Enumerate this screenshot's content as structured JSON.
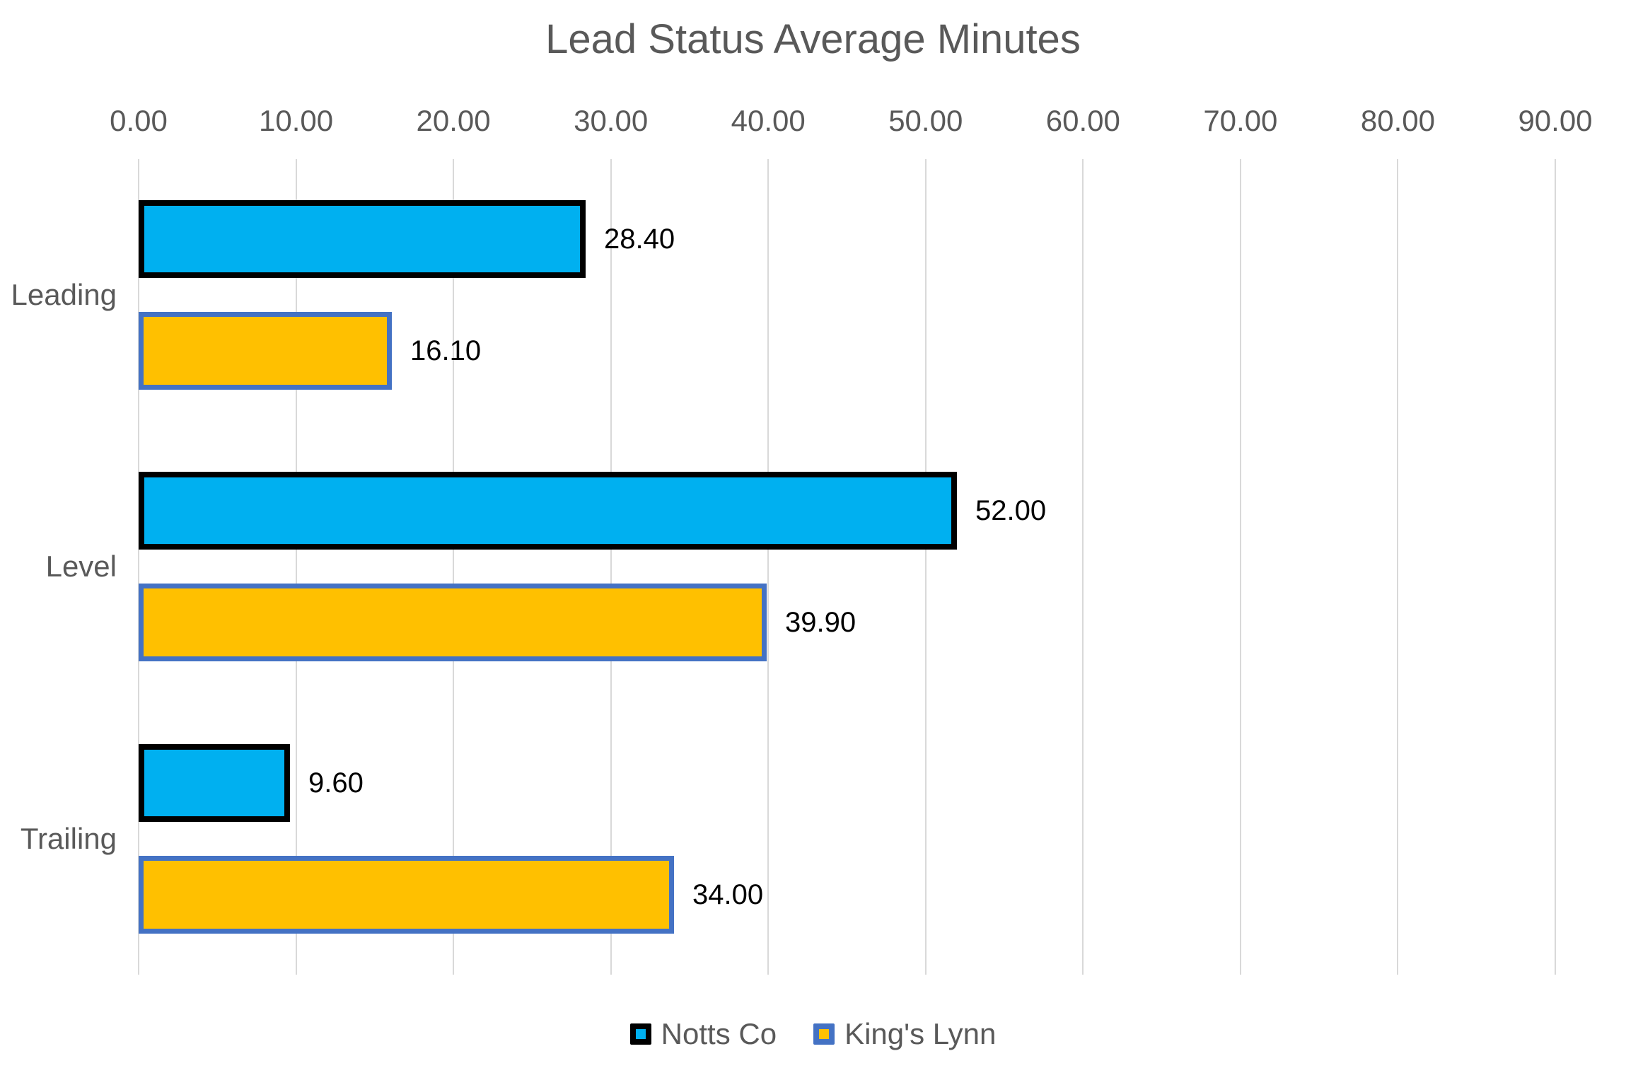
{
  "chart_data": {
    "type": "bar",
    "orientation": "horizontal",
    "title": "Lead Status Average Minutes",
    "categories": [
      "Leading",
      "Level",
      "Trailing"
    ],
    "series": [
      {
        "name": "Notts Co",
        "values": [
          28.4,
          52.0,
          9.6
        ],
        "labels": [
          "28.40",
          "52.00",
          "9.60"
        ],
        "fill": "#00B0F0",
        "border_color": "#000000"
      },
      {
        "name": "King's Lynn",
        "values": [
          16.1,
          39.9,
          34.0
        ],
        "labels": [
          "16.10",
          "39.90",
          "34.00"
        ],
        "fill": "#FFC000",
        "border_color": "#4472C4"
      }
    ],
    "xlim": [
      0,
      90
    ],
    "x_tick_labels": [
      "0.00",
      "10.00",
      "20.00",
      "30.00",
      "40.00",
      "50.00",
      "60.00",
      "70.00",
      "80.00",
      "90.00"
    ],
    "x_tick_step": 10,
    "grid": true,
    "gridline_color": "#D9D9D9",
    "axis_text_color": "#595959",
    "data_label_color": "#000000",
    "legend_position": "bottom"
  }
}
